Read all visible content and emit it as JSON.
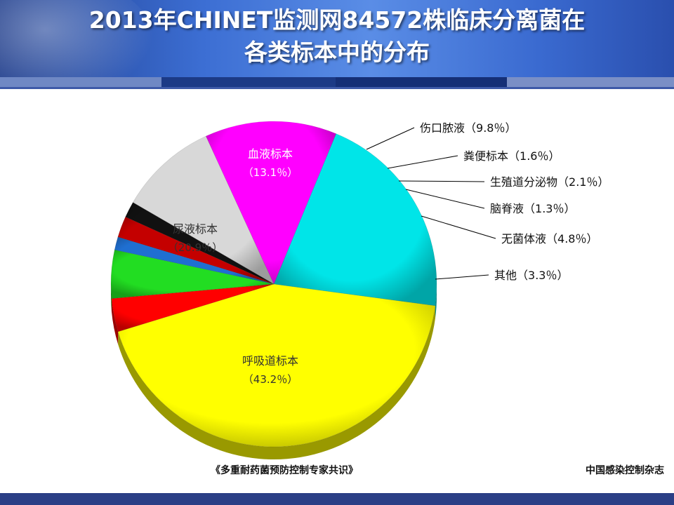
{
  "header": {
    "title_line1": "2013年CHINET监测网84572株临床分离菌在",
    "title_line2": "各类标本中的分布"
  },
  "footer": {
    "source": "《多重耐药菌预防控制专家共识》",
    "journal": "中国感染控制杂志"
  },
  "chart_data": {
    "type": "pie",
    "unit": "%",
    "slices": [
      {
        "name": "呼吸道标本",
        "value": 43.2,
        "label": "（43.2％）",
        "color": "#ffff00"
      },
      {
        "name": "尿液标本",
        "value": 20.9,
        "label": "（20.9％）",
        "color": "#00e5e8"
      },
      {
        "name": "血液标本",
        "value": 13.1,
        "label": "（13.1％）",
        "color": "#ff00ff"
      },
      {
        "name": "伤口脓液",
        "value": 9.8,
        "label": "（9.8％）",
        "color": "#d8d8d8"
      },
      {
        "name": "粪便标本",
        "value": 1.6,
        "label": "（1.6％）",
        "color": "#111111"
      },
      {
        "name": "生殖道分泌物",
        "value": 2.1,
        "label": "（2.1％）",
        "color": "#c40000"
      },
      {
        "name": "脑脊液",
        "value": 1.3,
        "label": "（1.3％）",
        "color": "#1f6fd1"
      },
      {
        "name": "无菌体液",
        "value": 4.8,
        "label": "（4.8％）",
        "color": "#22dd22"
      },
      {
        "name": "其他",
        "value": 3.3,
        "label": "（3.3％）",
        "color": "#ff0000"
      }
    ]
  }
}
